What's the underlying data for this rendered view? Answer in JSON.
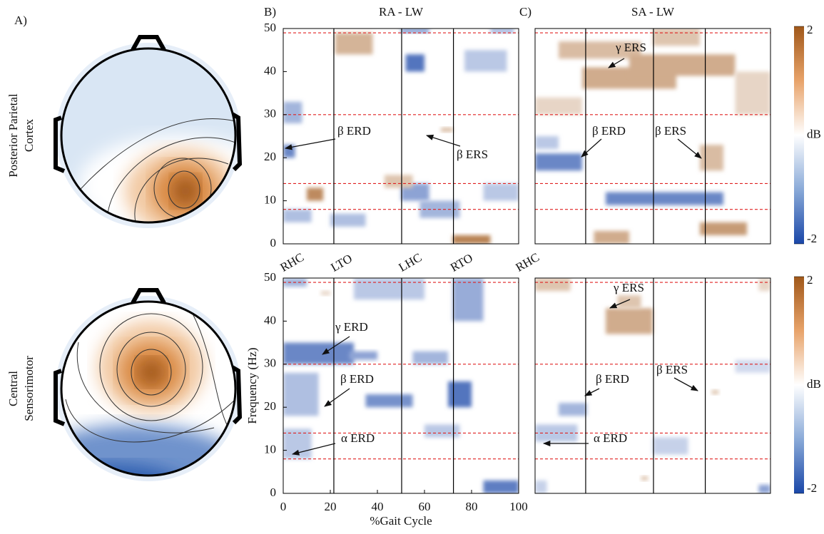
{
  "figure_labels": {
    "a": "A)",
    "b": "B)",
    "c": "C)"
  },
  "row_labels": [
    [
      "Posterior Parietal",
      "Cortex"
    ],
    [
      "Central",
      "Sensorimotor"
    ]
  ],
  "gait_events": {
    "labels": [
      "RHC",
      "LTO",
      "LHC",
      "RTO",
      "RHC"
    ],
    "x": [
      0,
      21.5,
      50.3,
      72.3,
      100
    ]
  },
  "colorbar": {
    "label": "dB",
    "lim": [
      -2,
      2
    ],
    "ticks": [
      -2,
      2
    ]
  },
  "chart_data": [
    {
      "type": "heatmap",
      "title": "RA - LW",
      "xlim": [
        0,
        100
      ],
      "ylim": [
        0,
        50
      ],
      "yticks": [
        0,
        10,
        20,
        30,
        40,
        50
      ],
      "reference_lines": [
        49,
        30,
        14,
        8
      ],
      "annotations": [
        "β ERD",
        "β ERS"
      ],
      "cells": [
        {
          "x": [
            22,
            38
          ],
          "y": [
            44,
            49
          ],
          "value": 0.9
        },
        {
          "x": [
            52,
            60
          ],
          "y": [
            40,
            44
          ],
          "value": -1.5
        },
        {
          "x": [
            50,
            62
          ],
          "y": [
            49,
            50
          ],
          "value": -1.2
        },
        {
          "x": [
            0,
            5
          ],
          "y": [
            20,
            23
          ],
          "value": -1.3
        },
        {
          "x": [
            0,
            8
          ],
          "y": [
            28,
            33
          ],
          "value": -0.8
        },
        {
          "x": [
            10,
            17
          ],
          "y": [
            10,
            13
          ],
          "value": 1.4
        },
        {
          "x": [
            0,
            12
          ],
          "y": [
            5,
            8
          ],
          "value": -0.7
        },
        {
          "x": [
            20,
            35
          ],
          "y": [
            4,
            7
          ],
          "value": -0.7
        },
        {
          "x": [
            50,
            62
          ],
          "y": [
            10,
            14
          ],
          "value": -1.0
        },
        {
          "x": [
            58,
            75
          ],
          "y": [
            6,
            10
          ],
          "value": -0.8
        },
        {
          "x": [
            72,
            88
          ],
          "y": [
            0,
            2
          ],
          "value": 1.5
        },
        {
          "x": [
            43,
            55
          ],
          "y": [
            13,
            16
          ],
          "value": 0.7
        },
        {
          "x": [
            67,
            72
          ],
          "y": [
            26,
            27
          ],
          "value": 0.8
        },
        {
          "x": [
            77,
            95
          ],
          "y": [
            40,
            45
          ],
          "value": -0.6
        },
        {
          "x": [
            85,
            100
          ],
          "y": [
            10,
            14
          ],
          "value": -0.6
        },
        {
          "x": [
            88,
            98
          ],
          "y": [
            49,
            50
          ],
          "value": -0.9
        }
      ]
    },
    {
      "type": "heatmap",
      "title": "SA - LW",
      "xlim": [
        0,
        100
      ],
      "ylim": [
        0,
        50
      ],
      "reference_lines": [
        49,
        30,
        14,
        8
      ],
      "annotations": [
        "γ ERS",
        "β ERD",
        "β ERS"
      ],
      "cells": [
        {
          "x": [
            10,
            45
          ],
          "y": [
            43,
            47
          ],
          "value": 0.8
        },
        {
          "x": [
            20,
            60
          ],
          "y": [
            36,
            41
          ],
          "value": 1.0
        },
        {
          "x": [
            40,
            85
          ],
          "y": [
            39,
            44
          ],
          "value": 1.0
        },
        {
          "x": [
            50,
            70
          ],
          "y": [
            46,
            50
          ],
          "value": 0.7
        },
        {
          "x": [
            0,
            20
          ],
          "y": [
            17,
            21
          ],
          "value": -1.3
        },
        {
          "x": [
            0,
            10
          ],
          "y": [
            22,
            25
          ],
          "value": -0.6
        },
        {
          "x": [
            70,
            80
          ],
          "y": [
            17,
            23
          ],
          "value": 0.8
        },
        {
          "x": [
            30,
            80
          ],
          "y": [
            9,
            12
          ],
          "value": -1.3
        },
        {
          "x": [
            25,
            40
          ],
          "y": [
            0,
            3
          ],
          "value": 1.0
        },
        {
          "x": [
            70,
            90
          ],
          "y": [
            2,
            5
          ],
          "value": 1.2
        },
        {
          "x": [
            0,
            20
          ],
          "y": [
            30,
            34
          ],
          "value": 0.5
        },
        {
          "x": [
            85,
            100
          ],
          "y": [
            30,
            40
          ],
          "value": 0.5
        }
      ]
    },
    {
      "type": "heatmap",
      "xlim": [
        0,
        100
      ],
      "ylim": [
        0,
        50
      ],
      "xlabel": "%Gait Cycle",
      "ylabel": "Frequency (Hz)",
      "xticks": [
        0,
        20,
        40,
        60,
        80,
        100
      ],
      "yticks": [
        0,
        10,
        20,
        30,
        40,
        50
      ],
      "reference_lines": [
        49,
        30,
        14,
        8
      ],
      "annotations": [
        "γ ERD",
        "β ERD",
        "α ERD"
      ],
      "cells": [
        {
          "x": [
            0,
            30
          ],
          "y": [
            30,
            35
          ],
          "value": -1.3
        },
        {
          "x": [
            28,
            40
          ],
          "y": [
            31,
            33
          ],
          "value": -1.0
        },
        {
          "x": [
            70,
            80
          ],
          "y": [
            20,
            26
          ],
          "value": -1.5
        },
        {
          "x": [
            35,
            55
          ],
          "y": [
            20,
            23
          ],
          "value": -1.2
        },
        {
          "x": [
            0,
            15
          ],
          "y": [
            18,
            28
          ],
          "value": -0.7
        },
        {
          "x": [
            0,
            12
          ],
          "y": [
            8,
            15
          ],
          "value": -0.6
        },
        {
          "x": [
            30,
            60
          ],
          "y": [
            45,
            50
          ],
          "value": -0.6
        },
        {
          "x": [
            55,
            70
          ],
          "y": [
            30,
            33
          ],
          "value": -0.8
        },
        {
          "x": [
            85,
            100
          ],
          "y": [
            0,
            3
          ],
          "value": -1.4
        },
        {
          "x": [
            72,
            85
          ],
          "y": [
            40,
            50
          ],
          "value": -0.9
        },
        {
          "x": [
            60,
            75
          ],
          "y": [
            13,
            16
          ],
          "value": -0.6
        },
        {
          "x": [
            16,
            20
          ],
          "y": [
            46,
            47
          ],
          "value": 0.5
        },
        {
          "x": [
            0,
            10
          ],
          "y": [
            48,
            50
          ],
          "value": -0.8
        }
      ]
    },
    {
      "type": "heatmap",
      "xlim": [
        0,
        100
      ],
      "ylim": [
        0,
        50
      ],
      "reference_lines": [
        49,
        30,
        14,
        8
      ],
      "annotations": [
        "γ ERS",
        "β ERD",
        "β ERS",
        "α ERD"
      ],
      "cells": [
        {
          "x": [
            30,
            50
          ],
          "y": [
            37,
            43
          ],
          "value": 1.0
        },
        {
          "x": [
            35,
            45
          ],
          "y": [
            43,
            46
          ],
          "value": 0.7
        },
        {
          "x": [
            0,
            15
          ],
          "y": [
            47,
            50
          ],
          "value": 0.7
        },
        {
          "x": [
            75,
            78
          ],
          "y": [
            23,
            24
          ],
          "value": 0.7
        },
        {
          "x": [
            45,
            48
          ],
          "y": [
            3,
            4
          ],
          "value": 0.7
        },
        {
          "x": [
            10,
            22
          ],
          "y": [
            18,
            21
          ],
          "value": -0.8
        },
        {
          "x": [
            0,
            18
          ],
          "y": [
            12,
            16
          ],
          "value": -0.6
        },
        {
          "x": [
            50,
            65
          ],
          "y": [
            9,
            13
          ],
          "value": -0.5
        },
        {
          "x": [
            85,
            100
          ],
          "y": [
            28,
            31
          ],
          "value": -0.4
        },
        {
          "x": [
            0,
            5
          ],
          "y": [
            0,
            3
          ],
          "value": -0.5
        },
        {
          "x": [
            95,
            100
          ],
          "y": [
            0,
            2
          ],
          "value": -1.0
        },
        {
          "x": [
            95,
            100
          ],
          "y": [
            47,
            50
          ],
          "value": 0.5
        }
      ]
    }
  ]
}
